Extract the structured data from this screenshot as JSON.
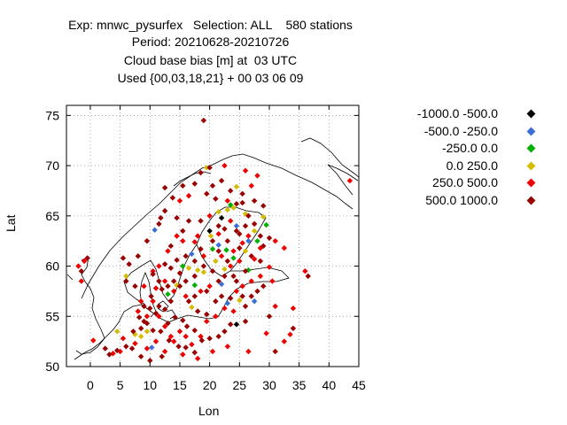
{
  "title": {
    "line1": "Exp: mnwc_pysurfex   Selection: ALL    580 stations",
    "line2": "Period: 20210628-20210726",
    "line3": "Cloud base bias [m] at  03 UTC",
    "line4": "Used {00,03,18,21} + 00 03 06 09"
  },
  "chart_data": {
    "type": "scatter",
    "xlabel": "Lon",
    "ylabel": "Lat",
    "xlim": [
      -4,
      45
    ],
    "ylim": [
      50,
      76
    ],
    "xticks": [
      "0",
      "5",
      "10",
      "15",
      "20",
      "25",
      "30",
      "35",
      "40",
      "45"
    ],
    "yticks": [
      "50",
      "55",
      "60",
      "65",
      "70",
      "75"
    ],
    "grid": true,
    "legend_position": "right",
    "series": [
      {
        "name": "-1000.0 -500.0",
        "color": "#000000",
        "points": [
          [
            24.5,
            54.2
          ],
          [
            22.0,
            64.8
          ],
          [
            20.0,
            63.5
          ]
        ]
      },
      {
        "name": "-500.0 -250.0",
        "color": "#3a6fd8",
        "points": [
          [
            10.8,
            63.6
          ],
          [
            10.3,
            51.9
          ],
          [
            23.0,
            56.3
          ],
          [
            24.5,
            64.0
          ],
          [
            26.5,
            62.5
          ],
          [
            27.5,
            56.5
          ],
          [
            22.0,
            58.2
          ],
          [
            17.0,
            61.2
          ],
          [
            21.5,
            62.1
          ]
        ]
      },
      {
        "name": "-250.0 0.0",
        "color": "#00b000",
        "points": [
          [
            13.0,
            57.2
          ],
          [
            28.0,
            62.5
          ],
          [
            24.0,
            60.8
          ],
          [
            22.8,
            61.6
          ],
          [
            26.5,
            59.6
          ],
          [
            29.5,
            64.1
          ],
          [
            20.5,
            61.7
          ],
          [
            17.5,
            58.1
          ],
          [
            23.5,
            66.1
          ],
          [
            15.5,
            60.0
          ]
        ]
      },
      {
        "name": "0.0 250.0",
        "color": "#d4bc00",
        "points": [
          [
            19.5,
            69.8
          ],
          [
            24.5,
            67.9
          ],
          [
            29.0,
            64.9
          ],
          [
            25.0,
            56.6
          ],
          [
            27.5,
            63.5
          ],
          [
            24.0,
            65.8
          ],
          [
            21.5,
            65.4
          ],
          [
            23.0,
            65.6
          ],
          [
            26.0,
            65.2
          ],
          [
            22.5,
            59.7
          ],
          [
            19.0,
            59.4
          ],
          [
            18.0,
            59.6
          ],
          [
            16.5,
            59.8
          ],
          [
            14.5,
            58.1
          ],
          [
            9.5,
            53.5
          ],
          [
            6.0,
            59.0
          ],
          [
            4.5,
            53.5
          ],
          [
            17.0,
            55.9
          ],
          [
            26.0,
            61.5
          ],
          [
            21.0,
            60.5
          ],
          [
            20.2,
            63.0
          ],
          [
            8.5,
            53.0
          ],
          [
            7.5,
            53.2
          ]
        ]
      },
      {
        "name": "250.0 500.0",
        "color": "#ee0000",
        "points": [
          [
            28.0,
            69.0
          ],
          [
            26.0,
            69.5
          ],
          [
            22.5,
            70.0
          ],
          [
            27.0,
            68.0
          ],
          [
            23.0,
            66.5
          ],
          [
            23.5,
            64.5
          ],
          [
            26.5,
            63.0
          ],
          [
            28.5,
            61.8
          ],
          [
            25.5,
            62.3
          ],
          [
            21.5,
            63.2
          ],
          [
            18.0,
            63.0
          ],
          [
            17.5,
            62.4
          ],
          [
            15.5,
            62.5
          ],
          [
            14.5,
            63.0
          ],
          [
            13.0,
            61.5
          ],
          [
            11.5,
            60.0
          ],
          [
            10.5,
            59.5
          ],
          [
            9.0,
            58.0
          ],
          [
            8.5,
            56.5
          ],
          [
            8.0,
            55.5
          ],
          [
            9.5,
            55.0
          ],
          [
            10.5,
            56.5
          ],
          [
            11.5,
            55.0
          ],
          [
            12.5,
            54.0
          ],
          [
            13.5,
            53.0
          ],
          [
            14.0,
            52.5
          ],
          [
            15.0,
            53.5
          ],
          [
            16.0,
            53.0
          ],
          [
            17.0,
            52.2
          ],
          [
            18.5,
            53.0
          ],
          [
            19.5,
            54.5
          ],
          [
            21.0,
            55.0
          ],
          [
            22.5,
            55.8
          ],
          [
            24.0,
            55.5
          ],
          [
            24.5,
            57.5
          ],
          [
            25.5,
            58.0
          ],
          [
            27.0,
            58.5
          ],
          [
            28.5,
            59.0
          ],
          [
            30.0,
            59.9
          ],
          [
            30.5,
            58.5
          ],
          [
            33.5,
            53.2
          ],
          [
            32.5,
            52.5
          ],
          [
            29.5,
            53.3
          ],
          [
            26.5,
            51.5
          ],
          [
            23.0,
            52.0
          ],
          [
            20.5,
            51.5
          ],
          [
            18.0,
            50.8
          ],
          [
            15.5,
            51.2
          ],
          [
            12.5,
            51.5
          ],
          [
            11.0,
            52.5
          ],
          [
            9.5,
            51.8
          ],
          [
            7.5,
            52.3
          ],
          [
            5.5,
            52.8
          ],
          [
            5.0,
            51.5
          ],
          [
            3.8,
            51.3
          ],
          [
            0.5,
            52.6
          ],
          [
            -1.5,
            58.5
          ],
          [
            -2.0,
            60.0
          ],
          [
            -1.0,
            60.5
          ],
          [
            43.5,
            68.5
          ],
          [
            36.0,
            59.5
          ],
          [
            32.5,
            61.8
          ],
          [
            31.0,
            62.5
          ],
          [
            34.0,
            55.8
          ],
          [
            31.0,
            56.0
          ],
          [
            16.5,
            67.0
          ],
          [
            15.0,
            66.5
          ],
          [
            20.0,
            65.0
          ],
          [
            22.0,
            61.0
          ],
          [
            20.0,
            58.0
          ],
          [
            16.0,
            57.0
          ],
          [
            18.5,
            57.5
          ],
          [
            12.5,
            58.5
          ],
          [
            14.0,
            57.5
          ],
          [
            11.0,
            57.8
          ],
          [
            23.5,
            60.0
          ],
          [
            25.0,
            60.5
          ],
          [
            27.5,
            60.7
          ],
          [
            24.0,
            61.5
          ],
          [
            19.0,
            61.0
          ]
        ]
      },
      {
        "name": "500.0 1000.0",
        "color": "#990000",
        "points": [
          [
            19.0,
            74.5
          ],
          [
            18.5,
            69.3
          ],
          [
            20.0,
            69.8
          ],
          [
            22.0,
            68.5
          ],
          [
            25.5,
            67.2
          ],
          [
            21.0,
            66.7
          ],
          [
            24.5,
            66.2
          ],
          [
            26.5,
            65.0
          ],
          [
            27.5,
            64.2
          ],
          [
            30.0,
            62.8
          ],
          [
            29.0,
            62.0
          ],
          [
            25.0,
            63.2
          ],
          [
            22.5,
            63.7
          ],
          [
            20.5,
            62.5
          ],
          [
            18.5,
            61.7
          ],
          [
            16.0,
            61.0
          ],
          [
            14.5,
            60.6
          ],
          [
            12.5,
            60.2
          ],
          [
            10.5,
            59.2
          ],
          [
            11.5,
            58.5
          ],
          [
            12.0,
            57.7
          ],
          [
            13.5,
            56.5
          ],
          [
            12.5,
            55.7
          ],
          [
            11.0,
            55.3
          ],
          [
            10.0,
            55.8
          ],
          [
            9.0,
            56.0
          ],
          [
            8.2,
            54.9
          ],
          [
            8.5,
            53.8
          ],
          [
            9.5,
            54.3
          ],
          [
            10.5,
            53.6
          ],
          [
            11.8,
            53.5
          ],
          [
            13.0,
            54.3
          ],
          [
            14.2,
            54.9
          ],
          [
            15.5,
            54.6
          ],
          [
            16.2,
            54.0
          ],
          [
            17.5,
            53.6
          ],
          [
            18.7,
            52.6
          ],
          [
            17.5,
            51.4
          ],
          [
            16.0,
            51.9
          ],
          [
            14.8,
            52.0
          ],
          [
            13.2,
            52.6
          ],
          [
            12.0,
            51.0
          ],
          [
            10.0,
            50.6
          ],
          [
            8.5,
            51.0
          ],
          [
            7.0,
            51.8
          ],
          [
            6.0,
            52.0
          ],
          [
            4.5,
            51.6
          ],
          [
            3.2,
            51.2
          ],
          [
            -0.5,
            60.8
          ],
          [
            -1.5,
            59.5
          ],
          [
            2.5,
            51.8
          ],
          [
            19.5,
            55.2
          ],
          [
            22.0,
            57.0
          ],
          [
            23.5,
            56.8
          ],
          [
            26.0,
            56.0
          ],
          [
            21.0,
            56.5
          ],
          [
            24.5,
            58.5
          ],
          [
            26.0,
            59.5
          ],
          [
            28.0,
            57.5
          ],
          [
            30.0,
            55.0
          ],
          [
            31.0,
            51.5
          ],
          [
            36.5,
            59.0
          ],
          [
            34.0,
            53.8
          ],
          [
            22.5,
            59.0
          ],
          [
            23.0,
            60.5
          ],
          [
            25.0,
            61.8
          ],
          [
            27.0,
            61.0
          ],
          [
            28.5,
            60.5
          ],
          [
            21.5,
            61.5
          ],
          [
            19.0,
            60.0
          ],
          [
            17.5,
            59.0
          ],
          [
            15.0,
            59.3
          ],
          [
            13.5,
            59.8
          ],
          [
            17.5,
            60.5
          ],
          [
            18.5,
            64.5
          ],
          [
            16.5,
            64.5
          ],
          [
            14.5,
            64.8
          ],
          [
            12.5,
            65.5
          ],
          [
            11.5,
            64.2
          ],
          [
            13.5,
            62.0
          ],
          [
            15.5,
            63.5
          ],
          [
            21.5,
            64.0
          ],
          [
            23.0,
            62.5
          ],
          [
            24.5,
            63.5
          ],
          [
            26.0,
            64.0
          ],
          [
            28.5,
            63.0
          ],
          [
            27.5,
            66.5
          ],
          [
            29.0,
            66.0
          ],
          [
            25.5,
            66.3
          ],
          [
            23.5,
            67.5
          ],
          [
            20.5,
            68.0
          ],
          [
            19.5,
            67.2
          ],
          [
            17.5,
            68.2
          ],
          [
            15.5,
            68.0
          ],
          [
            13.8,
            66.8
          ],
          [
            12.5,
            67.8
          ],
          [
            11.8,
            64.8
          ],
          [
            9.5,
            62.5
          ],
          [
            8.0,
            61.0
          ],
          [
            6.5,
            60.2
          ],
          [
            6.0,
            58.5
          ],
          [
            7.5,
            58.0
          ],
          [
            5.5,
            60.8
          ],
          [
            16.5,
            56.5
          ],
          [
            18.0,
            55.5
          ],
          [
            17.5,
            57.0
          ],
          [
            19.5,
            57.5
          ],
          [
            20.5,
            59.5
          ],
          [
            21.5,
            58.5
          ],
          [
            24.0,
            59.0
          ],
          [
            25.5,
            57.0
          ],
          [
            27.0,
            57.0
          ],
          [
            29.0,
            58.0
          ],
          [
            26.0,
            54.5
          ],
          [
            23.5,
            54.2
          ],
          [
            21.5,
            53.0
          ],
          [
            20.0,
            52.8
          ],
          [
            22.5,
            53.5
          ],
          [
            14.0,
            58.5
          ],
          [
            13.0,
            58.0
          ],
          [
            15.0,
            58.0
          ],
          [
            16.0,
            58.5
          ],
          [
            11.5,
            56.0
          ],
          [
            10.2,
            57.0
          ],
          [
            9.0,
            54.5
          ],
          [
            7.2,
            53.5
          ]
        ]
      }
    ]
  }
}
